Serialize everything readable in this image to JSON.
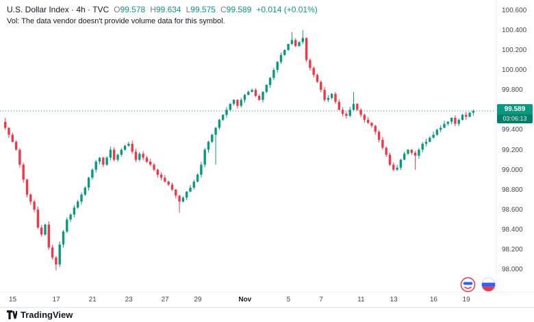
{
  "legend": {
    "symbol_title": "U.S. Dollar Index · 4h · TVC",
    "ohlc_labels": {
      "o": "O",
      "h": "H",
      "l": "L",
      "c": "C"
    },
    "ohlc_values": {
      "o": "99.578",
      "h": "99.634",
      "l": "99.575",
      "c": "99.589"
    },
    "change": "+0.014 (+0.01%)",
    "vol_note": "Vol: The data vendor doesn't provide volume data for this symbol."
  },
  "chart_data": {
    "type": "candlestick",
    "title": "U.S. Dollar Index · 4h · TVC",
    "symbol": "U.S. Dollar Index",
    "interval": "4h",
    "exchange": "TVC",
    "grid": false,
    "legend_position": "top-left",
    "up_color": "#089981",
    "down_color": "#f23645",
    "y_axis": {
      "min": 97.94,
      "max": 100.66,
      "ticks": [
        "100.600",
        "100.400",
        "100.200",
        "100.000",
        "99.800",
        "99.400",
        "99.200",
        "99.000",
        "98.800",
        "98.600",
        "98.400",
        "98.200",
        "98.000"
      ]
    },
    "x_axis": {
      "labels": [
        {
          "text": "15",
          "i": 2
        },
        {
          "text": "17",
          "i": 14
        },
        {
          "text": "21",
          "i": 24
        },
        {
          "text": "23",
          "i": 34
        },
        {
          "text": "27",
          "i": 44
        },
        {
          "text": "29",
          "i": 53
        },
        {
          "text": "Nov",
          "i": 66
        },
        {
          "text": "5",
          "i": 78
        },
        {
          "text": "7",
          "i": 87
        },
        {
          "text": "11",
          "i": 98
        },
        {
          "text": "13",
          "i": 107
        },
        {
          "text": "16",
          "i": 118
        },
        {
          "text": "19",
          "i": 127
        }
      ]
    },
    "first_open": 99.48,
    "closes": [
      99.42,
      99.35,
      99.28,
      99.2,
      99.05,
      98.9,
      98.75,
      98.68,
      98.6,
      98.42,
      98.35,
      98.45,
      98.22,
      98.12,
      98.05,
      98.25,
      98.38,
      98.5,
      98.55,
      98.62,
      98.68,
      98.75,
      98.82,
      98.92,
      99.0,
      99.08,
      99.12,
      99.05,
      99.12,
      99.2,
      99.1,
      99.15,
      99.2,
      99.24,
      99.26,
      99.18,
      99.1,
      99.16,
      99.12,
      99.08,
      99.05,
      99.0,
      98.95,
      98.92,
      98.88,
      98.85,
      98.8,
      98.74,
      98.68,
      98.72,
      98.78,
      98.82,
      98.88,
      98.95,
      99.05,
      99.2,
      99.28,
      99.35,
      99.42,
      99.5,
      99.55,
      99.6,
      99.66,
      99.7,
      99.64,
      99.7,
      99.75,
      99.78,
      99.8,
      99.74,
      99.7,
      99.78,
      99.85,
      99.92,
      100.0,
      100.08,
      100.15,
      100.2,
      100.26,
      100.3,
      100.24,
      100.28,
      100.32,
      100.1,
      100.02,
      99.95,
      99.88,
      99.8,
      99.7,
      99.72,
      99.76,
      99.68,
      99.6,
      99.56,
      99.54,
      99.6,
      99.66,
      99.6,
      99.55,
      99.5,
      99.47,
      99.44,
      99.38,
      99.3,
      99.22,
      99.15,
      99.05,
      99.0,
      99.02,
      99.1,
      99.16,
      99.2,
      99.17,
      99.14,
      99.2,
      99.26,
      99.28,
      99.32,
      99.35,
      99.4,
      99.42,
      99.46,
      99.48,
      99.52,
      99.46,
      99.5,
      99.55,
      99.53,
      99.57,
      99.589
    ],
    "wick_overrides": [
      {
        "i": 0,
        "high": 99.52
      },
      {
        "i": 14,
        "low": 97.99
      },
      {
        "i": 48,
        "low": 98.57
      },
      {
        "i": 58,
        "low": 99.05
      },
      {
        "i": 79,
        "high": 100.38
      },
      {
        "i": 82,
        "high": 100.4
      },
      {
        "i": 96,
        "high": 99.78
      },
      {
        "i": 113,
        "low": 99.0
      }
    ],
    "last": {
      "open": 99.578,
      "high": 99.634,
      "low": 99.575,
      "close": 99.589,
      "change": 0.014,
      "change_pct": 0.01
    },
    "last_price": 99.589,
    "last_price_label": "99.589",
    "countdown": "03:06:13"
  },
  "footer": {
    "brand": "TradingView"
  },
  "colors": {
    "up": "#089981",
    "down": "#f23645",
    "text": "#131722",
    "muted": "#787b86",
    "axis_text": "#434651",
    "border": "#e0e3eb"
  }
}
